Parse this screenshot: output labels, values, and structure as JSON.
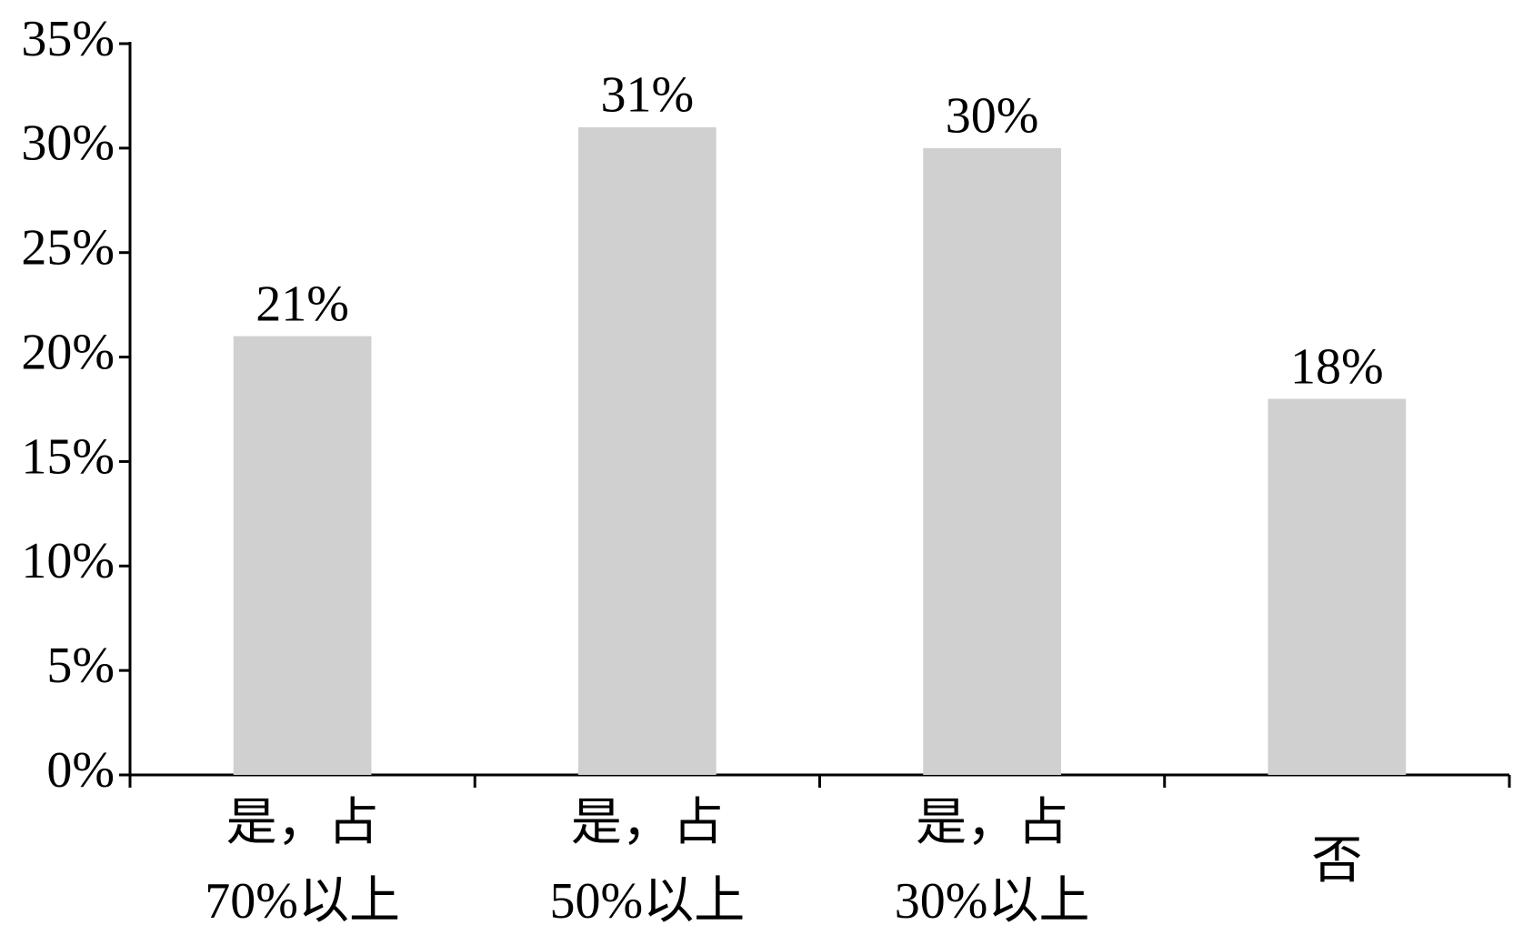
{
  "chart_data": {
    "type": "bar",
    "categories": [
      [
        "是，占",
        "70%以上"
      ],
      [
        "是，占",
        "50%以上"
      ],
      [
        "是，占",
        "30%以上"
      ],
      [
        "否"
      ]
    ],
    "values": [
      21,
      31,
      30,
      18
    ],
    "value_labels": [
      "21%",
      "31%",
      "30%",
      "18%"
    ],
    "color": "#d0d0d0",
    "ylim": [
      0,
      35
    ],
    "yticks": [
      {
        "value": 0,
        "label": "0%"
      },
      {
        "value": 5,
        "label": "5%"
      },
      {
        "value": 10,
        "label": "10%"
      },
      {
        "value": 15,
        "label": "15%"
      },
      {
        "value": 20,
        "label": "20%"
      },
      {
        "value": 25,
        "label": "25%"
      },
      {
        "value": 30,
        "label": "30%"
      },
      {
        "value": 35,
        "label": "35%"
      }
    ],
    "grid": false
  }
}
